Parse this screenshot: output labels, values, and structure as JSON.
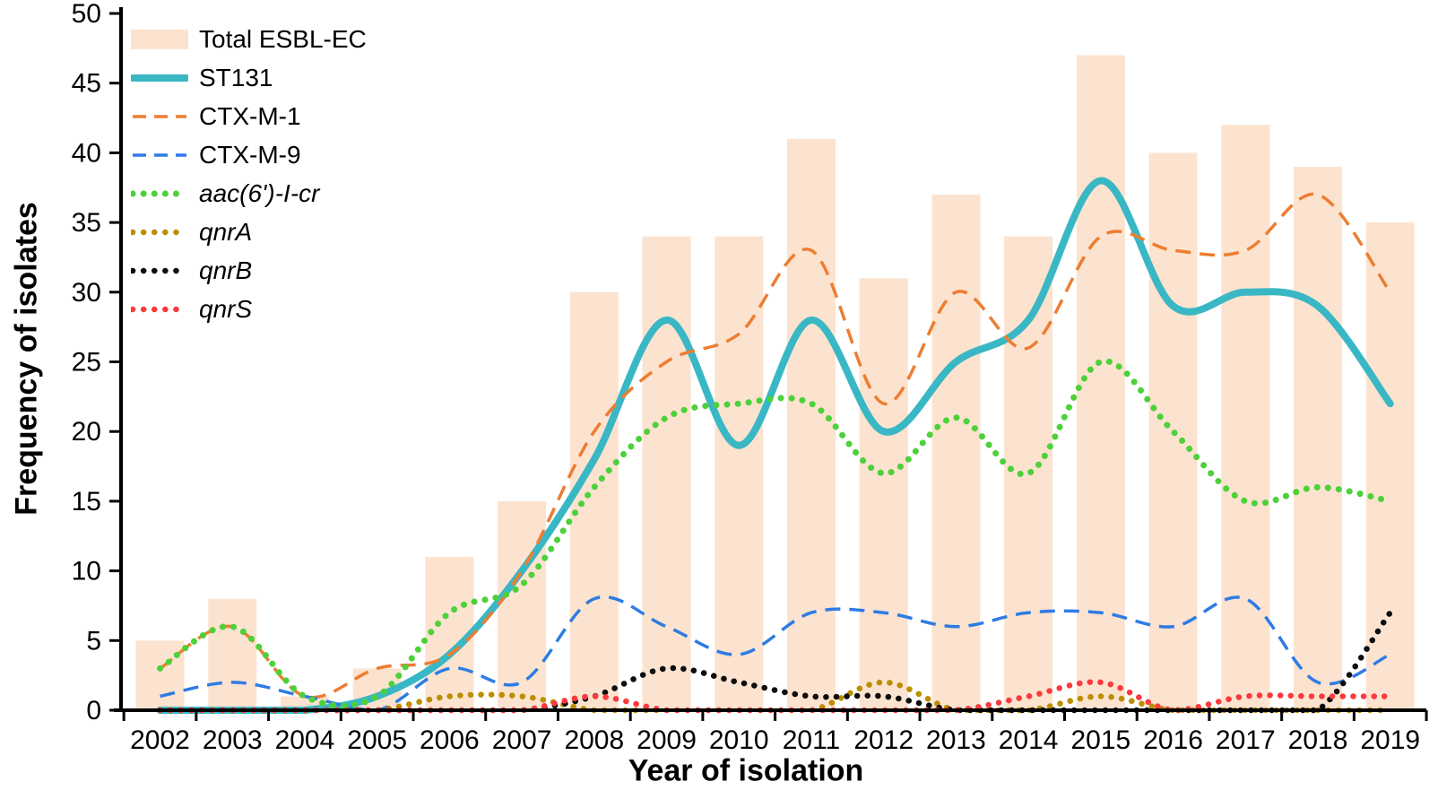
{
  "figure": {
    "y_axis_title": "Frequency of isolates",
    "x_axis_title": "Year of isolation"
  },
  "chart_data": {
    "type": "combo-bar-line",
    "title": "",
    "xlabel": "Year of isolation",
    "ylabel": "Frequency of isolates",
    "grid": false,
    "legend_position": "top-left",
    "categories": [
      "2002",
      "2003",
      "2004",
      "2005",
      "2006",
      "2007",
      "2008",
      "2009",
      "2010",
      "2011",
      "2012",
      "2013",
      "2014",
      "2015",
      "2016",
      "2017",
      "2018",
      "2019"
    ],
    "y_axis": {
      "min": 0,
      "max": 50,
      "step": 5
    },
    "bar_series": {
      "name": "Total ESBL-EC",
      "color": "#fce3cf",
      "values": [
        5,
        8,
        1,
        3,
        11,
        15,
        30,
        34,
        34,
        41,
        31,
        37,
        34,
        47,
        40,
        42,
        39,
        35
      ]
    },
    "line_series": [
      {
        "name": "ST131",
        "color": "#39b7c4",
        "style": "solid",
        "width": 8,
        "italic": false,
        "values": [
          0,
          0,
          0,
          1,
          4,
          10,
          18,
          28,
          19,
          28,
          20,
          25,
          28,
          38,
          29,
          30,
          29,
          22
        ]
      },
      {
        "name": "CTX-M-1",
        "color": "#ed7d31",
        "style": "dashed",
        "width": 3.5,
        "italic": false,
        "values": [
          3,
          6,
          1,
          3,
          4,
          10,
          20,
          25,
          27,
          33,
          22,
          30,
          26,
          34,
          33,
          33,
          37,
          30
        ]
      },
      {
        "name": "CTX-M-9",
        "color": "#2e7ce4",
        "style": "dashed",
        "width": 3.5,
        "italic": false,
        "values": [
          1,
          2,
          1,
          0,
          3,
          2,
          8,
          6,
          4,
          7,
          7,
          6,
          7,
          7,
          6,
          8,
          2,
          4
        ]
      },
      {
        "name": "aac(6')-I-cr",
        "color": "#4dd13a",
        "style": "dotted",
        "width": 7,
        "italic": true,
        "values": [
          3,
          6,
          1,
          1,
          7,
          9,
          16,
          21,
          22,
          22,
          17,
          21,
          17,
          25,
          20,
          15,
          16,
          15
        ]
      },
      {
        "name": "qnrA",
        "color": "#bb8f00",
        "style": "dotted",
        "width": 6.5,
        "italic": true,
        "values": [
          0,
          0,
          0,
          0,
          1,
          1,
          0,
          0,
          0,
          0,
          2,
          0,
          0,
          1,
          0,
          0,
          0,
          0
        ]
      },
      {
        "name": "qnrB",
        "color": "#0d0d0d",
        "style": "dotted",
        "width": 6.5,
        "italic": true,
        "values": [
          0,
          0,
          0,
          0,
          0,
          0,
          1,
          3,
          2,
          1,
          1,
          0,
          0,
          0,
          0,
          0,
          0,
          7
        ]
      },
      {
        "name": "qnrS",
        "color": "#fa3a3d",
        "style": "dotted",
        "width": 6.5,
        "italic": true,
        "values": [
          0,
          0,
          0,
          0,
          0,
          0,
          1,
          0,
          0,
          0,
          0,
          0,
          1,
          2,
          0,
          1,
          1,
          1
        ]
      }
    ]
  }
}
